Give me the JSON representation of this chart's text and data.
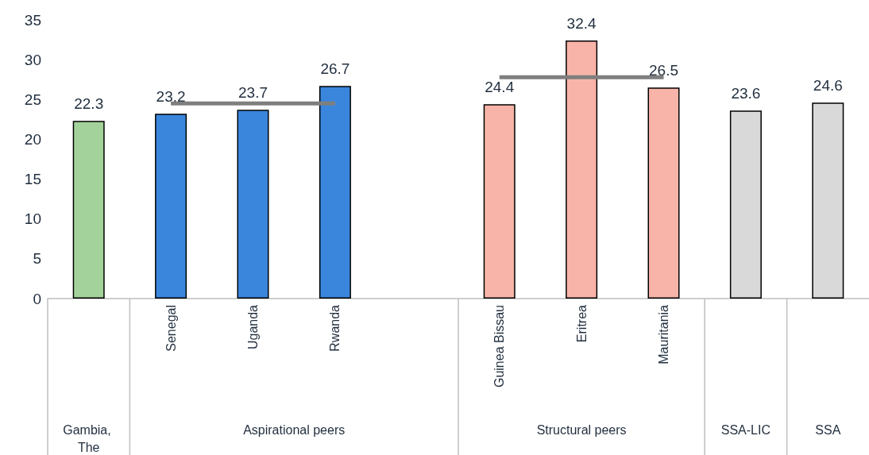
{
  "chart_data": {
    "type": "bar",
    "categories": [
      null,
      "Senegal",
      "Uganda",
      "Rwanda",
      null,
      "Guinea Bissau",
      "Eritrea",
      "Mauritania",
      null,
      null
    ],
    "values": [
      22.3,
      23.2,
      23.7,
      26.7,
      null,
      24.4,
      32.4,
      26.5,
      23.6,
      24.6
    ],
    "value_labels": [
      "22.3",
      "23.2",
      "23.7",
      "26.7",
      null,
      "24.4",
      "32.4",
      "26.5",
      "23.6",
      "24.6"
    ],
    "colors": [
      "#a3d39a",
      "#3a86dc",
      "#3a86dc",
      "#3a86dc",
      null,
      "#f8b4a8",
      "#f8b4a8",
      "#f8b4a8",
      "#d9d9d9",
      "#d9d9d9"
    ],
    "series": [
      {
        "type": "line",
        "color": "#7f7f7f",
        "values": [
          null,
          24.5,
          24.5,
          24.5,
          null,
          27.8,
          27.8,
          27.8,
          null,
          null
        ]
      }
    ],
    "marker": "none",
    "ylim": [
      0,
      35
    ],
    "yticks": [
      0,
      5,
      10,
      15,
      20,
      25,
      30,
      35
    ],
    "grid": false,
    "annotations": [
      "Gambia, The",
      "Aspirational peers",
      "Structural peers",
      "SSA-LIC",
      "SSA"
    ]
  }
}
